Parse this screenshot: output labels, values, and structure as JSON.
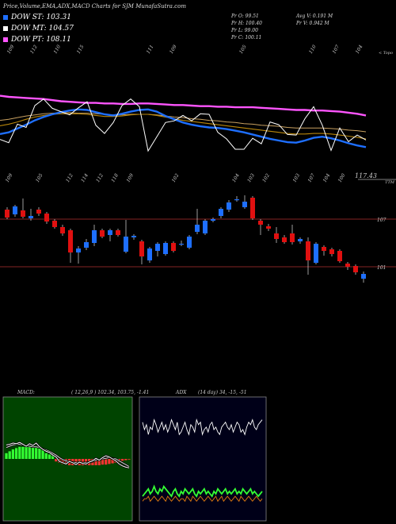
{
  "header": {
    "title": "Price,Volume,EMA,ADX,MACD Charts for SJM MunafaSutra.com"
  },
  "legend": [
    {
      "label": "DOW ST: 103.31",
      "color": "#1e6fff"
    },
    {
      "label": "DOW MT: 104.57",
      "color": "#ffffff"
    },
    {
      "label": "DOW PT: 108.11",
      "color": "#ff55ff"
    }
  ],
  "quote": {
    "pr_o": "Pr  O: 99.51",
    "pr_h": "Pr  H: 100.40",
    "pr_l": "Pr  L: 99.00",
    "pr_c": "Pr  C: 100.11",
    "avg_v": "Avg V: 0.191 M",
    "pr_v": "Pr  V: 0.942  M"
  },
  "top_panel": {
    "right_label": "< Topo",
    "last_value_label": "117.43",
    "top_axis_labels": [
      "109",
      "112",
      "110",
      "115",
      "",
      "",
      "111",
      "109",
      "",
      "",
      "105",
      "",
      "",
      "110",
      "107",
      "104"
    ],
    "bottom_axis_labels": [
      "109",
      "",
      "105",
      "",
      "112",
      "114",
      "112",
      "118",
      "109",
      "",
      "",
      "102",
      "",
      "",
      "",
      "104",
      "103",
      "102",
      "",
      "103",
      "107",
      "104",
      "100"
    ],
    "colors": {
      "ema_pink": "#ff55ff",
      "ema_blue": "#1e6fff",
      "ema_gold": "#b8860b",
      "ema_tan": "#c8a060",
      "price": "#ffffff",
      "ref": "#b03030"
    }
  },
  "chart_data": [
    {
      "type": "line",
      "title": "",
      "series": [
        {
          "values": [
            125.5,
            125.3,
            125.2,
            125.1,
            125.0,
            124.9,
            124.7,
            124.5,
            124.4,
            124.3,
            124.2,
            124.2,
            124.1,
            124.1,
            124.0,
            124.0,
            124.1,
            124.1,
            124.0,
            123.9,
            123.8,
            123.8,
            123.7,
            123.6,
            123.6,
            123.5,
            123.5,
            123.4,
            123.4,
            123.4,
            123.3,
            123.2,
            123.1,
            123.0,
            122.9,
            122.9,
            122.8,
            122.8,
            122.7,
            122.6,
            122.4,
            122.2,
            121.9
          ]
        },
        {
          "values": [
            118.5,
            118.8,
            119.5,
            120.2,
            121.0,
            121.6,
            122.1,
            122.5,
            122.8,
            123.0,
            122.9,
            122.5,
            122.1,
            121.9,
            122.2,
            122.6,
            122.9,
            123.0,
            122.6,
            121.8,
            121.2,
            120.6,
            120.2,
            119.9,
            119.7,
            119.6,
            119.4,
            119.1,
            118.8,
            118.4,
            118.0,
            117.6,
            117.3,
            117.0,
            116.9,
            117.3,
            117.8,
            118.0,
            117.7,
            117.3,
            116.8,
            116.4,
            116.1
          ]
        },
        {
          "values": [
            120.0,
            120.3,
            120.7,
            121.2,
            121.6,
            121.9,
            122.1,
            122.2,
            122.2,
            122.2,
            122.1,
            121.9,
            121.7,
            121.7,
            121.8,
            122.0,
            122.1,
            122.1,
            121.9,
            121.6,
            121.3,
            121.0,
            120.8,
            120.6,
            120.4,
            120.2,
            120.0,
            119.8,
            119.6,
            119.4,
            119.2,
            119.0,
            118.8,
            118.6,
            118.5,
            118.5,
            118.6,
            118.6,
            118.5,
            118.3,
            118.1,
            117.9,
            117.6
          ]
        },
        {
          "values": [
            121.0,
            121.2,
            121.5,
            121.8,
            122.0,
            122.2,
            122.3,
            122.4,
            122.4,
            122.3,
            122.3,
            122.2,
            122.1,
            122.0,
            122.0,
            122.1,
            122.1,
            122.1,
            122.0,
            121.8,
            121.6,
            121.5,
            121.3,
            121.2,
            121.0,
            120.9,
            120.7,
            120.6,
            120.4,
            120.3,
            120.1,
            120.0,
            119.9,
            119.7,
            119.6,
            119.6,
            119.6,
            119.6,
            119.5,
            119.4,
            119.2,
            119.1,
            118.9
          ]
        },
        {
          "values": [
            117.5,
            116.9,
            120.3,
            119.7,
            123.7,
            124.9,
            123.2,
            122.6,
            122.0,
            123.3,
            124.4,
            120.1,
            118.6,
            120.6,
            123.7,
            124.9,
            123.5,
            115.4,
            118.0,
            120.6,
            120.9,
            121.9,
            120.9,
            122.2,
            122.1,
            118.8,
            117.6,
            115.7,
            115.7,
            117.7,
            116.7,
            120.7,
            120.2,
            118.4,
            118.3,
            121.3,
            123.5,
            120.1,
            115.5,
            119.6,
            117.1,
            118.3,
            117.4
          ]
        }
      ]
    },
    {
      "type": "candlestick",
      "title": "",
      "reference_lines": [
        107,
        101
      ],
      "ref_labels": [
        "107",
        "101"
      ],
      "candles": [
        {
          "o": 108.2,
          "c": 107.2,
          "h": 108.5,
          "l": 107.0,
          "up": false
        },
        {
          "o": 107.6,
          "c": 108.6,
          "h": 108.8,
          "l": 107.3,
          "up": true
        },
        {
          "o": 108.1,
          "c": 107.3,
          "h": 109.6,
          "l": 107.1,
          "up": false
        },
        {
          "o": 107.1,
          "c": 107.4,
          "h": 108.3,
          "l": 106.8,
          "up": true
        },
        {
          "o": 108.2,
          "c": 107.7,
          "h": 108.5,
          "l": 107.4,
          "up": false
        },
        {
          "o": 107.7,
          "c": 106.7,
          "h": 107.9,
          "l": 106.4,
          "up": false
        },
        {
          "o": 106.8,
          "c": 106.0,
          "h": 107.0,
          "l": 105.8,
          "up": false
        },
        {
          "o": 106.0,
          "c": 105.2,
          "h": 106.3,
          "l": 104.9,
          "up": false
        },
        {
          "o": 105.6,
          "c": 102.8,
          "h": 105.8,
          "l": 101.5,
          "up": false
        },
        {
          "o": 102.8,
          "c": 103.3,
          "h": 103.6,
          "l": 101.4,
          "up": true
        },
        {
          "o": 103.4,
          "c": 104.1,
          "h": 104.5,
          "l": 103.1,
          "up": true
        },
        {
          "o": 104.0,
          "c": 105.6,
          "h": 106.3,
          "l": 103.6,
          "up": true
        },
        {
          "o": 105.6,
          "c": 104.8,
          "h": 105.8,
          "l": 104.6,
          "up": false
        },
        {
          "o": 105.0,
          "c": 105.6,
          "h": 105.8,
          "l": 104.2,
          "up": true
        },
        {
          "o": 105.6,
          "c": 105.0,
          "h": 105.8,
          "l": 104.8,
          "up": false
        },
        {
          "o": 102.9,
          "c": 104.8,
          "h": 106.9,
          "l": 102.7,
          "up": true
        },
        {
          "o": 104.7,
          "c": 104.9,
          "h": 105.1,
          "l": 104.4,
          "up": true
        },
        {
          "o": 104.2,
          "c": 102.3,
          "h": 104.4,
          "l": 101.3,
          "up": false
        },
        {
          "o": 101.8,
          "c": 103.3,
          "h": 103.5,
          "l": 101.5,
          "up": true
        },
        {
          "o": 103.0,
          "c": 103.9,
          "h": 104.1,
          "l": 102.3,
          "up": true
        },
        {
          "o": 102.6,
          "c": 104.0,
          "h": 104.2,
          "l": 102.4,
          "up": true
        },
        {
          "o": 104.0,
          "c": 103.0,
          "h": 104.2,
          "l": 102.8,
          "up": false
        },
        {
          "o": 103.8,
          "c": 103.9,
          "h": 104.3,
          "l": 103.6,
          "up": true
        },
        {
          "o": 103.4,
          "c": 104.8,
          "h": 105.0,
          "l": 103.2,
          "up": true
        },
        {
          "o": 105.4,
          "c": 106.3,
          "h": 108.3,
          "l": 105.1,
          "up": true
        },
        {
          "o": 105.2,
          "c": 106.8,
          "h": 107.0,
          "l": 105.0,
          "up": true
        },
        {
          "o": 106.8,
          "c": 107.0,
          "h": 107.2,
          "l": 106.6,
          "up": true
        },
        {
          "o": 107.4,
          "c": 108.3,
          "h": 108.5,
          "l": 107.1,
          "up": true
        },
        {
          "o": 108.2,
          "c": 109.1,
          "h": 109.4,
          "l": 107.9,
          "up": true
        },
        {
          "o": 109.4,
          "c": 109.5,
          "h": 109.9,
          "l": 109.2,
          "up": true
        },
        {
          "o": 108.5,
          "c": 109.2,
          "h": 110.0,
          "l": 108.3,
          "up": true
        },
        {
          "o": 109.7,
          "c": 107.1,
          "h": 109.9,
          "l": 106.9,
          "up": false
        },
        {
          "o": 106.8,
          "c": 106.3,
          "h": 107.0,
          "l": 105.0,
          "up": false
        },
        {
          "o": 106.1,
          "c": 105.8,
          "h": 106.4,
          "l": 105.5,
          "up": false
        },
        {
          "o": 105.2,
          "c": 104.5,
          "h": 106.0,
          "l": 104.0,
          "up": false
        },
        {
          "o": 104.7,
          "c": 104.1,
          "h": 105.0,
          "l": 103.9,
          "up": false
        },
        {
          "o": 105.2,
          "c": 104.1,
          "h": 106.3,
          "l": 103.8,
          "up": false
        },
        {
          "o": 104.2,
          "c": 104.5,
          "h": 104.7,
          "l": 103.9,
          "up": true
        },
        {
          "o": 104.2,
          "c": 101.8,
          "h": 104.7,
          "l": 100.0,
          "up": false
        },
        {
          "o": 101.5,
          "c": 103.9,
          "h": 104.1,
          "l": 101.3,
          "up": true
        },
        {
          "o": 103.5,
          "c": 103.0,
          "h": 103.7,
          "l": 102.4,
          "up": false
        },
        {
          "o": 103.2,
          "c": 102.6,
          "h": 103.4,
          "l": 102.3,
          "up": false
        },
        {
          "o": 103.0,
          "c": 101.7,
          "h": 103.2,
          "l": 101.5,
          "up": false
        },
        {
          "o": 101.4,
          "c": 101.0,
          "h": 101.6,
          "l": 100.6,
          "up": false
        },
        {
          "o": 101.1,
          "c": 100.3,
          "h": 101.3,
          "l": 100.0,
          "up": false
        },
        {
          "o": 99.5,
          "c": 100.1,
          "h": 100.4,
          "l": 99.0,
          "up": true
        }
      ]
    },
    {
      "type": "bar",
      "title": "",
      "label_prefix": "MACD:",
      "params": "( 12,26,9 ) 102.34,  103.75,  -1.41",
      "values": [
        0.9,
        1.2,
        1.5,
        1.7,
        1.9,
        1.9,
        1.9,
        1.9,
        1.9,
        1.8,
        1.7,
        1.5,
        0.9,
        0.7,
        0.7,
        -0.4,
        -0.6,
        -0.8,
        -0.9,
        -1.0,
        -1.0,
        -1.0,
        -1.0,
        -1.0,
        -1.0,
        -1.0,
        -1.0,
        -1.0,
        -1.0,
        -0.9,
        -0.9,
        -0.8,
        -0.7,
        -0.6,
        -0.5,
        -0.3,
        -0.2,
        -0.1
      ],
      "macd_line": [
        2.2,
        2.3,
        2.5,
        2.4,
        2.6,
        2.3,
        2.0,
        2.4,
        2.1,
        2.5,
        1.9,
        1.5,
        1.2,
        1.0,
        0.6,
        0.3,
        -0.4,
        -0.6,
        -0.8,
        -0.4,
        -0.6,
        -0.9,
        -0.5,
        -0.7,
        -0.8,
        -0.5,
        -0.3,
        0.1,
        -0.2,
        0.2,
        0.5,
        0.3,
        0.0,
        -0.3,
        -0.8,
        -1.1,
        -1.3,
        -1.4
      ],
      "signal_line": [
        1.8,
        2.0,
        2.2,
        2.3,
        2.3,
        2.2,
        2.1,
        2.0,
        1.9,
        1.9,
        1.8,
        1.6,
        1.4,
        1.2,
        0.9,
        0.6,
        0.2,
        -0.1,
        -0.3,
        -0.5,
        -0.5,
        -0.6,
        -0.6,
        -0.6,
        -0.6,
        -0.5,
        -0.4,
        -0.2,
        -0.1,
        0.0,
        0.1,
        0.2,
        0.1,
        0.0,
        -0.3,
        -0.6,
        -0.9,
        -1.2
      ]
    },
    {
      "type": "line",
      "title": "",
      "label_prefix": "ADX",
      "params": "(14  day) 34,  -15,  -51",
      "series": [
        {
          "values": [
            38,
            35,
            37,
            33,
            36,
            35,
            39,
            37,
            34,
            36,
            38,
            35,
            37,
            34,
            36,
            39,
            37,
            35,
            38,
            33,
            34,
            36,
            38,
            35,
            33,
            37,
            36,
            34,
            39,
            37,
            38,
            33,
            35,
            36,
            34,
            37,
            38,
            35,
            36,
            34,
            33,
            36,
            37,
            38,
            36,
            35,
            37,
            34,
            36,
            38,
            37,
            34,
            35,
            33,
            36,
            38,
            37,
            39,
            36,
            35,
            37,
            38,
            39
          ]
        },
        {
          "values": [
            8,
            9,
            10,
            11,
            9,
            10,
            12,
            10,
            9,
            11,
            10,
            12,
            11,
            10,
            9,
            8,
            10,
            11,
            9,
            8,
            10,
            9,
            11,
            10,
            9,
            10,
            11,
            9,
            8,
            10,
            9,
            10,
            11,
            9,
            10,
            9,
            8,
            10,
            9,
            11,
            10,
            9,
            10,
            11,
            9,
            10,
            9,
            10,
            11,
            9,
            10,
            9,
            11,
            10,
            9,
            10,
            11,
            9,
            10,
            9,
            8,
            9,
            10
          ]
        },
        {
          "values": [
            6,
            7,
            7,
            8,
            6,
            7,
            8,
            7,
            6,
            7,
            8,
            7,
            6,
            8,
            7,
            6,
            7,
            8,
            7,
            6,
            7,
            7,
            6,
            8,
            7,
            6,
            8,
            7,
            6,
            7,
            8,
            7,
            6,
            7,
            8,
            7,
            6,
            7,
            8,
            6,
            7,
            8,
            6,
            7,
            8,
            7,
            6,
            7,
            8,
            7,
            6,
            8,
            7,
            6,
            7,
            8,
            7,
            6,
            7,
            8,
            7,
            6,
            7
          ]
        }
      ]
    }
  ]
}
